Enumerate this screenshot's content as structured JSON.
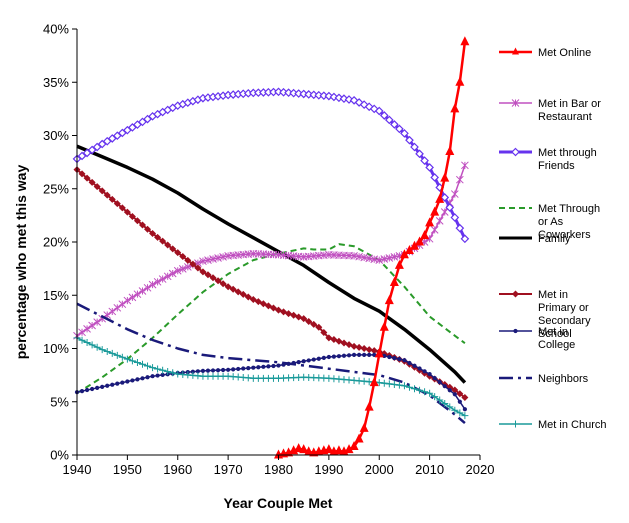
{
  "chart_data": {
    "type": "line",
    "title": "",
    "xlabel": "Year Couple Met",
    "ylabel": "percentage who met this way",
    "xlim": [
      1940,
      2020
    ],
    "ylim": [
      0,
      40
    ],
    "xticks": [
      "1940",
      "1950",
      "1960",
      "1970",
      "1980",
      "1990",
      "2000",
      "2010",
      "2020"
    ],
    "yticks": [
      "0%",
      "5%",
      "10%",
      "15%",
      "20%",
      "25%",
      "30%",
      "35%",
      "40%"
    ],
    "grid": false,
    "legend_position": "right",
    "series": [
      {
        "name": "Met Online",
        "color": "#ff0000",
        "marker": "triangle",
        "dash": "solid",
        "width": 2.5,
        "x": [
          1980,
          1981,
          1982,
          1983,
          1984,
          1985,
          1986,
          1987,
          1988,
          1989,
          1990,
          1991,
          1992,
          1993,
          1994,
          1995,
          1996,
          1997,
          1998,
          1999,
          2000,
          2001,
          2002,
          2003,
          2004,
          2005,
          2006,
          2007,
          2008,
          2009,
          2010,
          2011,
          2012,
          2013,
          2014,
          2015,
          2016,
          2017
        ],
        "y": [
          0,
          0.1,
          0.2,
          0.4,
          0.6,
          0.5,
          0.3,
          0.2,
          0.3,
          0.4,
          0.5,
          0.3,
          0.4,
          0.3,
          0.5,
          0.8,
          1.5,
          2.5,
          4.5,
          6.8,
          9.5,
          12,
          14.5,
          16.2,
          17.8,
          18.8,
          19.2,
          19.6,
          20,
          20.6,
          21.8,
          22.8,
          24,
          26,
          28.5,
          32.5,
          35,
          38.8
        ]
      },
      {
        "name": "Met in Bar or Restaurant",
        "color": "#c050c0",
        "marker": "star",
        "dash": "solid",
        "width": 1.5,
        "x": [
          1940,
          1945,
          1950,
          1955,
          1960,
          1965,
          1970,
          1975,
          1980,
          1985,
          1990,
          1995,
          2000,
          2005,
          2010,
          2015,
          2017
        ],
        "y": [
          11.2,
          12.8,
          14.5,
          16,
          17.3,
          18.2,
          18.7,
          18.9,
          18.8,
          18.6,
          18.8,
          18.7,
          18.3,
          18.8,
          20.3,
          24.5,
          27.2
        ]
      },
      {
        "name": "Met through Friends",
        "color": "#6633ee",
        "marker": "diamond-open",
        "dash": "solid",
        "width": 3,
        "x": [
          1940,
          1945,
          1950,
          1955,
          1960,
          1965,
          1970,
          1975,
          1980,
          1985,
          1990,
          1995,
          2000,
          2005,
          2010,
          2015,
          2017
        ],
        "y": [
          27.8,
          29.2,
          30.5,
          31.8,
          32.8,
          33.5,
          33.8,
          34,
          34.1,
          33.9,
          33.7,
          33.3,
          32.3,
          30.2,
          27,
          22.3,
          20.3
        ]
      },
      {
        "name": "Met Through or As Coworkers",
        "color": "#2a9a2a",
        "marker": "none",
        "dash": "dashed",
        "width": 2,
        "x": [
          1940,
          1945,
          1950,
          1955,
          1960,
          1965,
          1970,
          1975,
          1980,
          1985,
          1987,
          1990,
          1992,
          1995,
          2000,
          2005,
          2010,
          2015,
          2017
        ],
        "y": [
          5.8,
          7.3,
          9,
          11,
          13.2,
          15.3,
          17,
          18.3,
          18.9,
          19.4,
          19.3,
          19.3,
          19.8,
          19.6,
          18.3,
          15.8,
          13,
          11.2,
          10.5
        ]
      },
      {
        "name": "Family",
        "color": "#000000",
        "marker": "none",
        "dash": "solid",
        "width": 3.5,
        "x": [
          1940,
          1945,
          1950,
          1955,
          1960,
          1965,
          1970,
          1975,
          1980,
          1985,
          1990,
          1995,
          2000,
          2005,
          2010,
          2015,
          2017
        ],
        "y": [
          29,
          28,
          27,
          25.9,
          24.6,
          23.1,
          21.7,
          20.4,
          19.1,
          17.8,
          16.2,
          14.7,
          13.5,
          11.8,
          9.9,
          7.8,
          6.8
        ]
      },
      {
        "name": "Met in Primary or Secondary School",
        "color": "#a01020",
        "marker": "diamond",
        "dash": "solid",
        "width": 2,
        "x": [
          1940,
          1945,
          1950,
          1955,
          1960,
          1965,
          1970,
          1975,
          1980,
          1985,
          1988,
          1990,
          1995,
          2000,
          2005,
          2010,
          2015,
          2017
        ],
        "y": [
          26.8,
          24.8,
          22.8,
          20.8,
          19,
          17.2,
          15.8,
          14.6,
          13.6,
          12.8,
          12,
          11,
          10.2,
          9.7,
          8.8,
          7.4,
          6.1,
          5.4
        ]
      },
      {
        "name": "Met in College",
        "color": "#1a1a7a",
        "marker": "dot",
        "dash": "solid",
        "width": 1.5,
        "x": [
          1940,
          1945,
          1950,
          1955,
          1960,
          1965,
          1970,
          1975,
          1980,
          1985,
          1990,
          1995,
          2000,
          2005,
          2010,
          2015,
          2017
        ],
        "y": [
          5.9,
          6.4,
          6.9,
          7.4,
          7.7,
          7.9,
          8,
          8.2,
          8.4,
          8.8,
          9.2,
          9.4,
          9.4,
          8.9,
          7.6,
          5.7,
          4.3
        ]
      },
      {
        "name": "Neighbors",
        "color": "#1a1a7a",
        "marker": "none",
        "dash": "dashdot",
        "width": 2.5,
        "x": [
          1940,
          1945,
          1950,
          1955,
          1960,
          1965,
          1970,
          1975,
          1980,
          1985,
          1990,
          1995,
          2000,
          2005,
          2010,
          2015,
          2017
        ],
        "y": [
          14.2,
          13,
          11.8,
          10.8,
          10,
          9.4,
          9.1,
          8.9,
          8.7,
          8.4,
          8.1,
          7.8,
          7.5,
          6.8,
          5.6,
          3.8,
          3
        ]
      },
      {
        "name": "Met in Church",
        "color": "#1a9a9a",
        "marker": "plus",
        "dash": "solid",
        "width": 1.5,
        "x": [
          1940,
          1945,
          1950,
          1955,
          1960,
          1965,
          1970,
          1975,
          1980,
          1985,
          1990,
          1995,
          2000,
          2005,
          2010,
          2015,
          2017
        ],
        "y": [
          11,
          9.9,
          9,
          8.2,
          7.6,
          7.4,
          7.4,
          7.2,
          7.2,
          7.3,
          7.2,
          7,
          6.8,
          6.5,
          5.8,
          4.2,
          3.7
        ]
      }
    ]
  }
}
